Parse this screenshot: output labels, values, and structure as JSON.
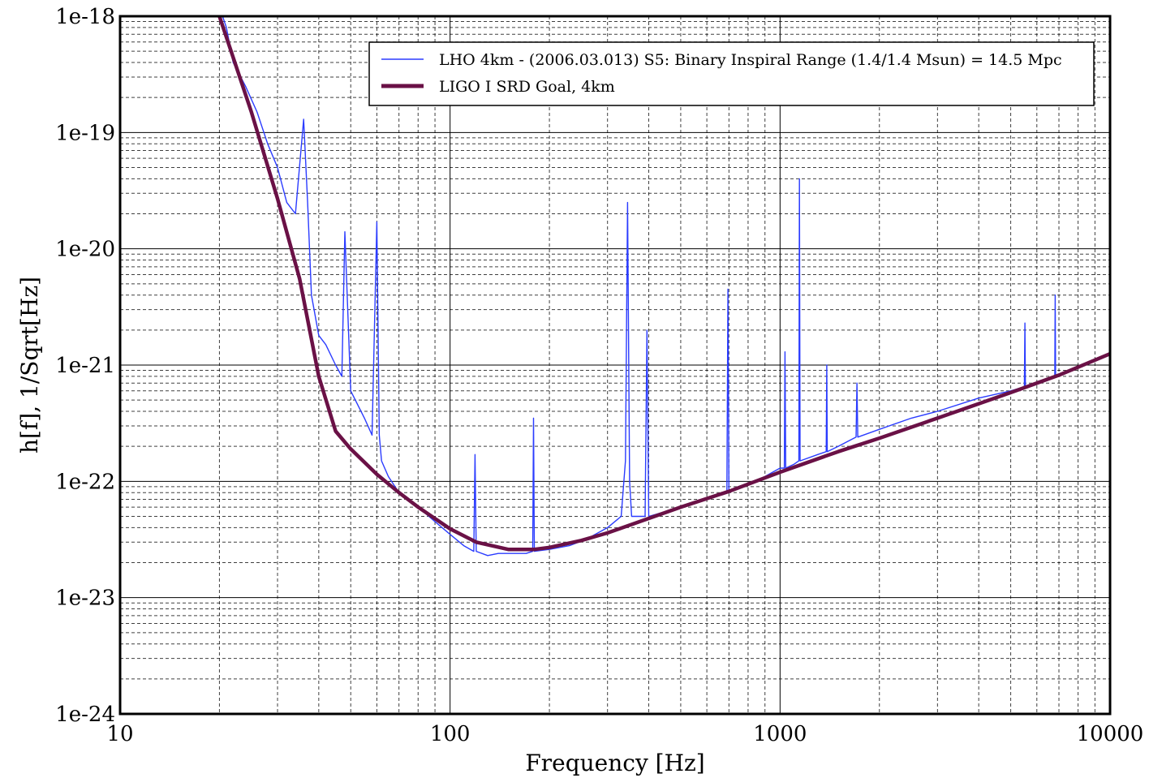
{
  "chart_data": {
    "type": "line",
    "xlabel": "Frequency [Hz]",
    "ylabel": "h[f], 1/Sqrt[Hz]",
    "xscale": "log",
    "yscale": "log",
    "xlim": [
      10,
      10000
    ],
    "ylim": [
      1e-24,
      1e-18
    ],
    "x_tick_labels": [
      "10",
      "100",
      "1000",
      "10000"
    ],
    "y_tick_labels": [
      "1e-18",
      "1e-19",
      "1e-20",
      "1e-21",
      "1e-22",
      "1e-23",
      "1e-24"
    ],
    "grid": true,
    "legend_position": "top-right",
    "series": [
      {
        "name": "LHO 4km - (2006.03.013) S5: Binary Inspiral Range (1.4/1.4 Msun) = 14.5 Mpc",
        "color": "#2b3cff",
        "x": [
          20,
          21,
          22,
          24,
          26,
          28,
          30,
          32,
          34,
          36,
          37,
          38,
          40,
          42,
          45,
          47,
          48,
          50,
          55,
          58,
          60,
          61,
          62,
          65,
          70,
          80,
          90,
          100,
          110,
          118,
          119,
          120,
          130,
          140,
          150,
          160,
          170,
          178,
          179,
          180,
          200,
          230,
          260,
          300,
          330,
          340,
          345,
          350,
          355,
          360,
          380,
          390,
          395,
          400,
          450,
          500,
          600,
          690,
          695,
          700,
          800,
          900,
          1000,
          1030,
          1035,
          1040,
          1100,
          1140,
          1145,
          1150,
          1300,
          1380,
          1385,
          1390,
          1500,
          1700,
          1710,
          1720,
          2000,
          2500,
          3000,
          4000,
          5000,
          5500,
          5520,
          5540,
          6000,
          6500,
          6800,
          6820,
          6840,
          7000
        ],
        "y": [
          1.2e-18,
          8e-19,
          4e-19,
          2.5e-19,
          1.5e-19,
          8e-20,
          5e-20,
          2.5e-20,
          2e-20,
          1.3e-19,
          2.5e-20,
          4e-21,
          1.8e-21,
          1.5e-21,
          1e-21,
          8e-22,
          1.4e-20,
          6e-22,
          3.5e-22,
          2.5e-22,
          1.7e-20,
          2.5e-22,
          1.5e-22,
          1.1e-22,
          8e-23,
          6e-23,
          4.5e-23,
          3.5e-23,
          2.8e-23,
          2.5e-23,
          1.7e-22,
          2.5e-23,
          2.3e-23,
          2.4e-23,
          2.4e-23,
          2.4e-23,
          2.4e-23,
          2.5e-23,
          3.5e-22,
          2.5e-23,
          2.6e-23,
          2.8e-23,
          3.2e-23,
          4e-23,
          5e-23,
          1.5e-22,
          2.5e-20,
          1e-22,
          5e-23,
          5e-23,
          5e-23,
          5e-23,
          2e-21,
          5e-23,
          5.5e-23,
          6e-23,
          7e-23,
          8e-23,
          4.5e-21,
          8e-23,
          9.5e-23,
          1.1e-22,
          1.3e-22,
          1.3e-22,
          1.3e-21,
          1.3e-22,
          1.4e-22,
          1.5e-22,
          4e-20,
          1.5e-22,
          1.7e-22,
          1.8e-22,
          1e-21,
          1.8e-22,
          2e-22,
          2.4e-22,
          7e-22,
          2.4e-22,
          2.8e-22,
          3.5e-22,
          4e-22,
          5.2e-22,
          6e-22,
          6.5e-22,
          2.3e-21,
          6.5e-22,
          7e-22,
          7.5e-22,
          8e-22,
          4e-21,
          8e-22,
          8e-22
        ]
      },
      {
        "name": "LIGO I SRD Goal, 4km",
        "color": "#6a1146",
        "x": [
          20,
          25,
          30,
          35,
          40,
          45,
          50,
          60,
          70,
          80,
          100,
          120,
          150,
          180,
          200,
          250,
          300,
          400,
          500,
          700,
          1000,
          1500,
          2000,
          3000,
          5000,
          7000,
          10000
        ],
        "y": [
          1e-18,
          1.5e-19,
          2.7e-20,
          5.5e-21,
          8e-22,
          2.7e-22,
          1.9e-22,
          1.15e-22,
          8e-23,
          6e-23,
          3.9e-23,
          3e-23,
          2.6e-23,
          2.6e-23,
          2.7e-23,
          3.1e-23,
          3.6e-23,
          4.8e-23,
          6e-23,
          8.2e-23,
          1.2e-22,
          1.8e-22,
          2.35e-22,
          3.5e-22,
          5.8e-22,
          8.2e-22,
          1.25e-21
        ]
      }
    ]
  }
}
